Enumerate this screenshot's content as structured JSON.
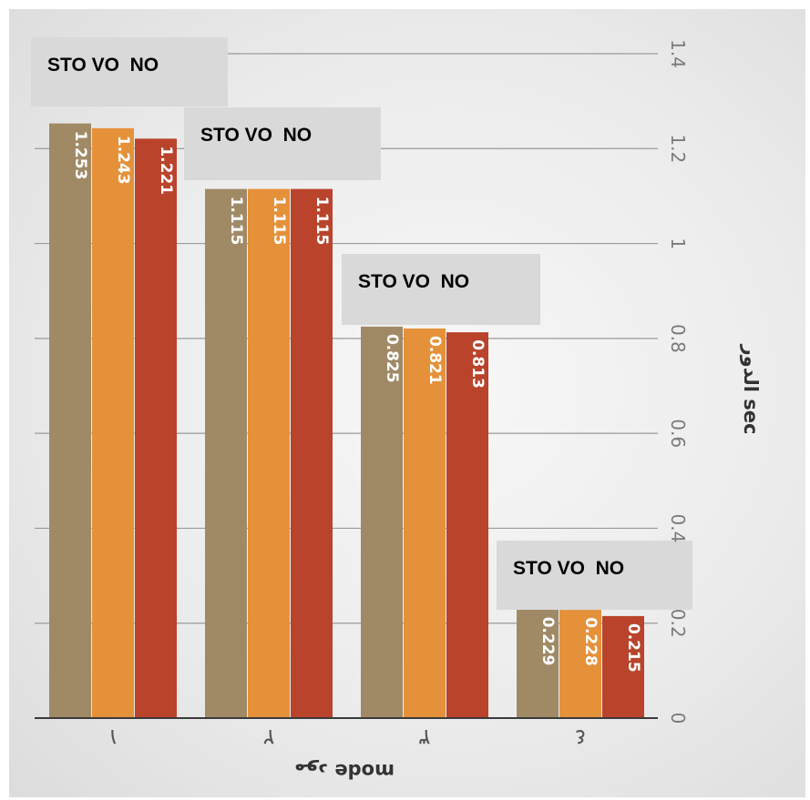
{
  "chart_data": {
    "type": "bar",
    "categories": [
      "١",
      "٢",
      "٣",
      "٤"
    ],
    "series": [
      {
        "name": "STO",
        "color": "#a08a66",
        "values": [
          1.253,
          1.115,
          0.825,
          0.229
        ]
      },
      {
        "name": "VO",
        "color": "#e5913a",
        "values": [
          1.243,
          1.115,
          0.821,
          0.228
        ]
      },
      {
        "name": "NO",
        "color": "#b9442b",
        "values": [
          1.221,
          1.115,
          0.813,
          0.215
        ]
      }
    ],
    "bar_labels": [
      [
        "1.253",
        "1.115",
        "0.825",
        "0.229"
      ],
      [
        "1.243",
        "1.115",
        "0.821",
        "0.228"
      ],
      [
        "1.221",
        "1.115",
        "0.813",
        "0.215"
      ]
    ],
    "legend_text": "STO VO  NO",
    "xlabel": "mode ﻣﻮﺩ",
    "ylabel": "الدور  sec",
    "ylim": [
      0,
      1.4
    ],
    "yticks": [
      0,
      0.2,
      0.4,
      0.6,
      0.8,
      1,
      1.2,
      1.4
    ],
    "ytick_labels": [
      "0",
      "0.2",
      "0.4",
      "0.6",
      "0.8",
      "1",
      "1.2",
      "1.4"
    ],
    "grid": true,
    "orientation": "rotated 90° clockwise (value axis on the right)"
  }
}
